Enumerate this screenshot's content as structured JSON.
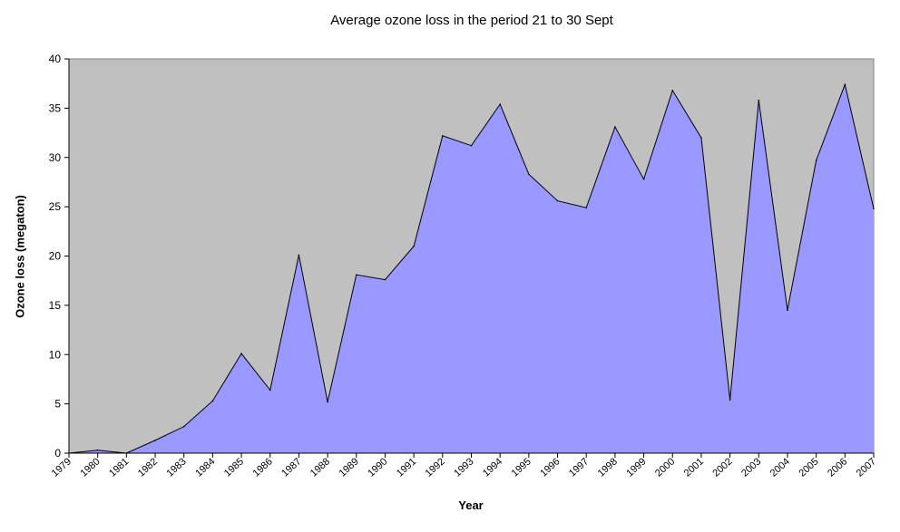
{
  "chart_data": {
    "type": "area",
    "title": "Average ozone loss in the period 21 to 30 Sept",
    "xlabel": "Year",
    "ylabel": "Ozone loss (megaton)",
    "ylim": [
      0,
      40
    ],
    "y_ticks": [
      0,
      5,
      10,
      15,
      20,
      25,
      30,
      35,
      40
    ],
    "grid": false,
    "legend": "none",
    "categories": [
      "1979",
      "1980",
      "1981",
      "1982",
      "1983",
      "1984",
      "1985",
      "1986",
      "1987",
      "1988",
      "1989",
      "1990",
      "1991",
      "1992",
      "1993",
      "1994",
      "1995",
      "1996",
      "1997",
      "1998",
      "1999",
      "2000",
      "2001",
      "2002",
      "2003",
      "2004",
      "2005",
      "2006",
      "2007"
    ],
    "series": [
      {
        "values": [
          0.0,
          0.3,
          0.0,
          1.3,
          2.7,
          5.3,
          10.1,
          6.4,
          20.1,
          5.2,
          18.1,
          17.6,
          21.0,
          32.2,
          31.2,
          35.4,
          28.3,
          25.6,
          24.9,
          33.1,
          27.8,
          36.8,
          32.0,
          5.4,
          35.8,
          14.5,
          29.7,
          37.4,
          24.8
        ]
      }
    ],
    "colors": {
      "plot_background": "#c0c0c0",
      "area_fill": "#9999ff",
      "area_stroke": "#000000",
      "axis": "#000000"
    }
  }
}
